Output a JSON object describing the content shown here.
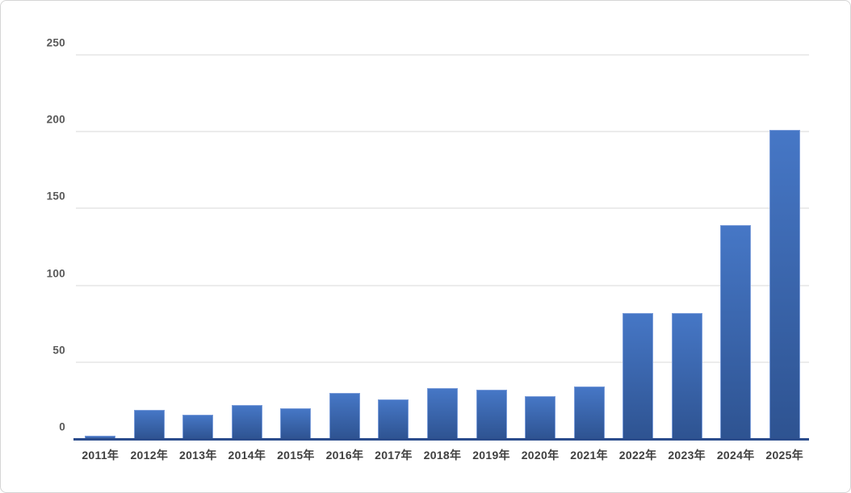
{
  "chart_data": {
    "type": "bar",
    "title": "",
    "xlabel": "",
    "ylabel": "",
    "categories": [
      "2011年",
      "2012年",
      "2013年",
      "2014年",
      "2015年",
      "2016年",
      "2017年",
      "2018年",
      "2019年",
      "2020年",
      "2021年",
      "2022年",
      "2023年",
      "2024年",
      "2025年"
    ],
    "values": [
      2,
      19,
      16,
      22,
      20,
      30,
      26,
      33,
      32,
      28,
      34,
      82,
      82,
      139,
      201
    ],
    "ylim": [
      0,
      250
    ],
    "yticks": [
      0,
      50,
      100,
      150,
      200,
      250
    ],
    "grid": true,
    "legend": false,
    "series_name": ""
  },
  "colors": {
    "bar-top": "#4677C6",
    "bar-bottom": "#2E5391",
    "bar-edge": "#7A9CD9",
    "axis-line": "#2B4C8C",
    "gridline": "#D9D9D9",
    "y-label": "#595959",
    "x-label": "#3F3F3F",
    "card-border": "#D5D5D5",
    "background": "#FFFFFF"
  }
}
